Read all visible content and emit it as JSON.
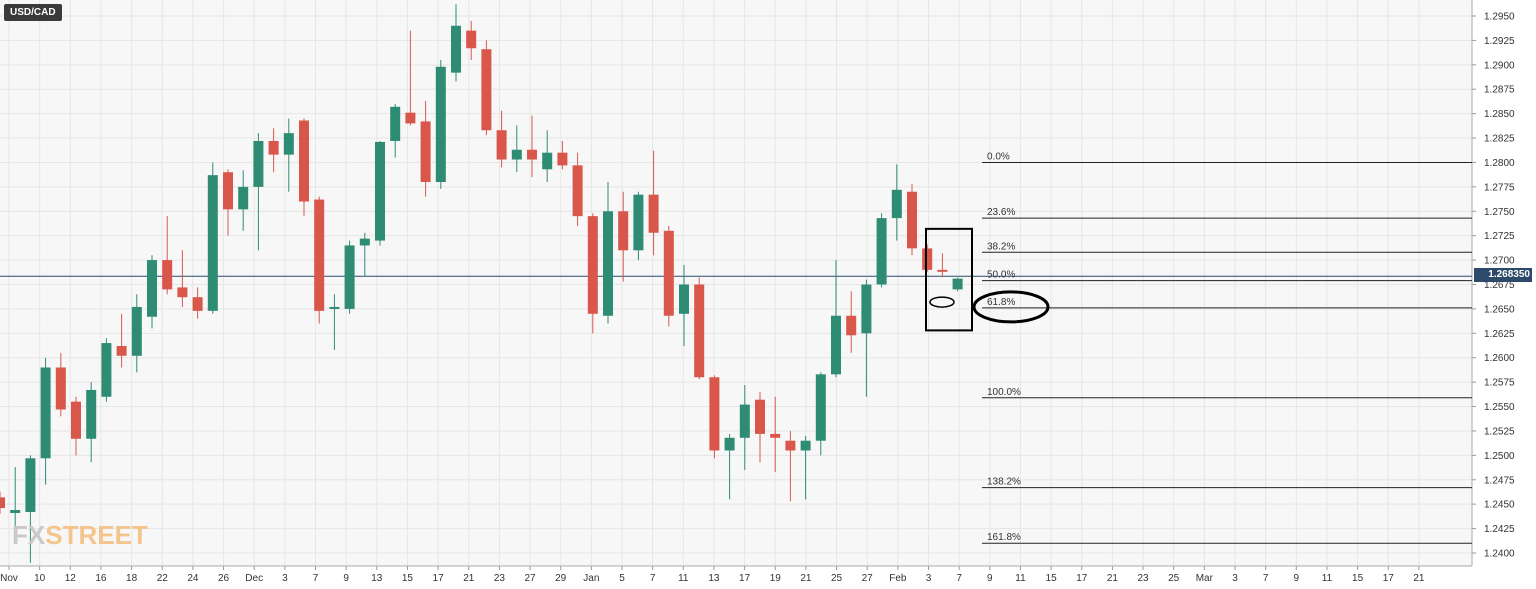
{
  "symbol": "USD/CAD",
  "last_price": "1.268350",
  "watermark": {
    "part1": "FX",
    "part2": "STREET"
  },
  "colors": {
    "bull": "#2e8b74",
    "bear": "#d9574a",
    "fib_line": "#222222",
    "price_line": "#2d4a6a",
    "annotation": "#000000"
  },
  "chart_data": {
    "type": "candlestick",
    "instrument": "USD/CAD",
    "timeframe": "daily",
    "ylim": [
      1.239,
      1.2965
    ],
    "y_ticks": [
      "1.2950",
      "1.2925",
      "1.2900",
      "1.2875",
      "1.2850",
      "1.2825",
      "1.2800",
      "1.2775",
      "1.2750",
      "1.2725",
      "1.2700",
      "1.2675",
      "1.2650",
      "1.2625",
      "1.2600",
      "1.2575",
      "1.2550",
      "1.2525",
      "1.2500",
      "1.2475",
      "1.2450",
      "1.2425",
      "1.2400"
    ],
    "x_ticks": [
      "Nov",
      "10",
      "12",
      "16",
      "18",
      "22",
      "24",
      "26",
      "Dec",
      "3",
      "7",
      "9",
      "13",
      "15",
      "17",
      "21",
      "23",
      "27",
      "29",
      "Jan",
      "5",
      "7",
      "11",
      "13",
      "17",
      "19",
      "21",
      "25",
      "27",
      "Feb",
      "3",
      "7",
      "9",
      "11",
      "15",
      "17",
      "21",
      "23",
      "25",
      "Mar",
      "3",
      "7",
      "9",
      "11",
      "15",
      "17",
      "21"
    ],
    "last_price": 1.26835,
    "candles": [
      {
        "o": 1.2457,
        "h": 1.2463,
        "l": 1.244,
        "c": 1.2446
      },
      {
        "o": 1.2441,
        "h": 1.2488,
        "l": 1.242,
        "c": 1.2444
      },
      {
        "o": 1.2442,
        "h": 1.25,
        "l": 1.239,
        "c": 1.2497
      },
      {
        "o": 1.2497,
        "h": 1.26,
        "l": 1.247,
        "c": 1.259
      },
      {
        "o": 1.259,
        "h": 1.2605,
        "l": 1.254,
        "c": 1.2547
      },
      {
        "o": 1.2555,
        "h": 1.256,
        "l": 1.25,
        "c": 1.2517
      },
      {
        "o": 1.2517,
        "h": 1.2575,
        "l": 1.2493,
        "c": 1.2567
      },
      {
        "o": 1.256,
        "h": 1.262,
        "l": 1.2555,
        "c": 1.2615
      },
      {
        "o": 1.2612,
        "h": 1.2645,
        "l": 1.259,
        "c": 1.2602
      },
      {
        "o": 1.2602,
        "h": 1.2665,
        "l": 1.2585,
        "c": 1.2652
      },
      {
        "o": 1.2642,
        "h": 1.2705,
        "l": 1.263,
        "c": 1.27
      },
      {
        "o": 1.27,
        "h": 1.2745,
        "l": 1.2665,
        "c": 1.267
      },
      {
        "o": 1.2672,
        "h": 1.271,
        "l": 1.2652,
        "c": 1.2662
      },
      {
        "o": 1.2662,
        "h": 1.2672,
        "l": 1.264,
        "c": 1.2648
      },
      {
        "o": 1.2648,
        "h": 1.28,
        "l": 1.2645,
        "c": 1.2787
      },
      {
        "o": 1.279,
        "h": 1.2793,
        "l": 1.2725,
        "c": 1.2752
      },
      {
        "o": 1.2752,
        "h": 1.2792,
        "l": 1.273,
        "c": 1.2775
      },
      {
        "o": 1.2775,
        "h": 1.283,
        "l": 1.271,
        "c": 1.2822
      },
      {
        "o": 1.2822,
        "h": 1.2835,
        "l": 1.279,
        "c": 1.2808
      },
      {
        "o": 1.2808,
        "h": 1.2845,
        "l": 1.277,
        "c": 1.283
      },
      {
        "o": 1.2843,
        "h": 1.2845,
        "l": 1.2745,
        "c": 1.276
      },
      {
        "o": 1.2762,
        "h": 1.2765,
        "l": 1.2635,
        "c": 1.2648
      },
      {
        "o": 1.265,
        "h": 1.2665,
        "l": 1.2608,
        "c": 1.2652
      },
      {
        "o": 1.265,
        "h": 1.272,
        "l": 1.2645,
        "c": 1.2715
      },
      {
        "o": 1.2715,
        "h": 1.2728,
        "l": 1.2683,
        "c": 1.2722
      },
      {
        "o": 1.272,
        "h": 1.2822,
        "l": 1.2715,
        "c": 1.2821
      },
      {
        "o": 1.2822,
        "h": 1.286,
        "l": 1.2805,
        "c": 1.2857
      },
      {
        "o": 1.2851,
        "h": 1.2935,
        "l": 1.2838,
        "c": 1.284
      },
      {
        "o": 1.2842,
        "h": 1.2863,
        "l": 1.2765,
        "c": 1.278
      },
      {
        "o": 1.278,
        "h": 1.2905,
        "l": 1.2773,
        "c": 1.2898
      },
      {
        "o": 1.2892,
        "h": 1.2962,
        "l": 1.2883,
        "c": 1.294
      },
      {
        "o": 1.2935,
        "h": 1.2945,
        "l": 1.2905,
        "c": 1.2917
      },
      {
        "o": 1.2916,
        "h": 1.2925,
        "l": 1.2828,
        "c": 1.2833
      },
      {
        "o": 1.2833,
        "h": 1.2853,
        "l": 1.2795,
        "c": 1.2803
      },
      {
        "o": 1.2803,
        "h": 1.2838,
        "l": 1.279,
        "c": 1.2813
      },
      {
        "o": 1.2813,
        "h": 1.2848,
        "l": 1.2785,
        "c": 1.2803
      },
      {
        "o": 1.2793,
        "h": 1.2833,
        "l": 1.278,
        "c": 1.281
      },
      {
        "o": 1.281,
        "h": 1.2822,
        "l": 1.2793,
        "c": 1.2797
      },
      {
        "o": 1.2797,
        "h": 1.281,
        "l": 1.2735,
        "c": 1.2745
      },
      {
        "o": 1.2745,
        "h": 1.2748,
        "l": 1.2625,
        "c": 1.2645
      },
      {
        "o": 1.2643,
        "h": 1.278,
        "l": 1.2635,
        "c": 1.275
      },
      {
        "o": 1.275,
        "h": 1.277,
        "l": 1.2678,
        "c": 1.271
      },
      {
        "o": 1.271,
        "h": 1.277,
        "l": 1.27,
        "c": 1.2767
      },
      {
        "o": 1.2767,
        "h": 1.2812,
        "l": 1.2705,
        "c": 1.2728
      },
      {
        "o": 1.273,
        "h": 1.2735,
        "l": 1.2632,
        "c": 1.2643
      },
      {
        "o": 1.2645,
        "h": 1.2695,
        "l": 1.2612,
        "c": 1.2675
      },
      {
        "o": 1.2675,
        "h": 1.2682,
        "l": 1.2578,
        "c": 1.258
      },
      {
        "o": 1.258,
        "h": 1.2582,
        "l": 1.2497,
        "c": 1.2505
      },
      {
        "o": 1.2505,
        "h": 1.2522,
        "l": 1.2455,
        "c": 1.2518
      },
      {
        "o": 1.2518,
        "h": 1.2572,
        "l": 1.2485,
        "c": 1.2552
      },
      {
        "o": 1.2557,
        "h": 1.2565,
        "l": 1.2493,
        "c": 1.2522
      },
      {
        "o": 1.2522,
        "h": 1.256,
        "l": 1.2483,
        "c": 1.2518
      },
      {
        "o": 1.2515,
        "h": 1.2525,
        "l": 1.2453,
        "c": 1.2505
      },
      {
        "o": 1.2505,
        "h": 1.252,
        "l": 1.2455,
        "c": 1.2515
      },
      {
        "o": 1.2515,
        "h": 1.2585,
        "l": 1.25,
        "c": 1.2583
      },
      {
        "o": 1.2583,
        "h": 1.27,
        "l": 1.258,
        "c": 1.2643
      },
      {
        "o": 1.2643,
        "h": 1.2668,
        "l": 1.2605,
        "c": 1.2623
      },
      {
        "o": 1.2625,
        "h": 1.268,
        "l": 1.256,
        "c": 1.2675
      },
      {
        "o": 1.2675,
        "h": 1.2748,
        "l": 1.2672,
        "c": 1.2743
      },
      {
        "o": 1.2743,
        "h": 1.2798,
        "l": 1.272,
        "c": 1.2772
      },
      {
        "o": 1.277,
        "h": 1.2778,
        "l": 1.2705,
        "c": 1.2712
      },
      {
        "o": 1.2712,
        "h": 1.2716,
        "l": 1.2688,
        "c": 1.269
      },
      {
        "o": 1.269,
        "h": 1.2707,
        "l": 1.2683,
        "c": 1.2688
      },
      {
        "o": 1.267,
        "h": 1.2682,
        "l": 1.2668,
        "c": 1.2681
      }
    ],
    "fibonacci": [
      {
        "label": "0.0%",
        "price": 1.28
      },
      {
        "label": "23.6%",
        "price": 1.2743
      },
      {
        "label": "38.2%",
        "price": 1.2708
      },
      {
        "label": "50.0%",
        "price": 1.2679
      },
      {
        "label": "61.8%",
        "price": 1.2651
      },
      {
        "label": "100.0%",
        "price": 1.2559
      },
      {
        "label": "138.2%",
        "price": 1.2467
      },
      {
        "label": "161.8%",
        "price": 1.241
      }
    ],
    "annotations": [
      {
        "kind": "rectangle",
        "price_top": 1.2732,
        "price_bottom": 1.2628
      },
      {
        "kind": "ellipse",
        "label": "61.8% circle",
        "price": 1.2651
      },
      {
        "kind": "small-ellipse",
        "price": 1.2657
      }
    ]
  }
}
